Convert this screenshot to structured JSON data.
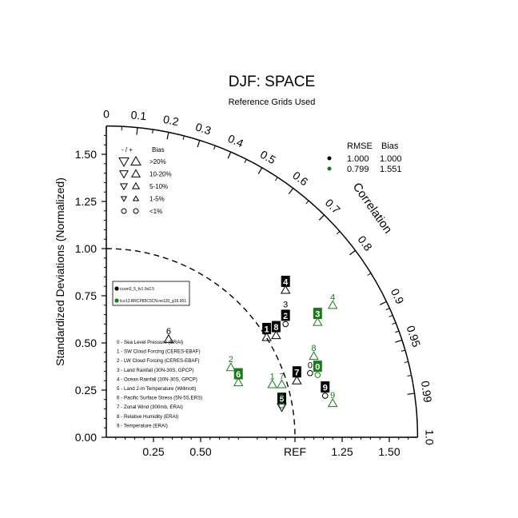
{
  "chart_data": {
    "type": "scatter",
    "subtype": "taylor-diagram",
    "title": "DJF: SPACE",
    "subtitle": "Reference Grids Used",
    "ylabel": "Standardized Deviations (Normalized)",
    "arc_label": "Correlation",
    "ylim": [
      0,
      1.65
    ],
    "xlim": [
      0,
      1.65
    ],
    "y_ticks": [
      "0.00",
      "0.25",
      "0.50",
      "0.75",
      "1.00",
      "1.25",
      "1.50"
    ],
    "x_ticks": [
      "0.25",
      "0.50",
      "REF",
      "1.25",
      "1.50"
    ],
    "corr_ticks": [
      "0",
      "0.1",
      "0.2",
      "0.3",
      "0.4",
      "0.5",
      "0.6",
      "0.7",
      "0.8",
      "0.9",
      "0.95",
      "0.99",
      "1.0"
    ],
    "reference_arc_radius": 1.0,
    "colors": {
      "case1": "#000000",
      "case2": "#1a7a1a"
    },
    "bias_legend": {
      "header_sign": "- / +",
      "header": "Bias",
      "rows": [
        ">20%",
        "10-20%",
        "5-10%",
        "1-5%",
        "<1%"
      ]
    },
    "summary_legend": {
      "headers": [
        "RMSE",
        "Bias"
      ],
      "rows": [
        {
          "rmse": "1.000",
          "bias": "1.000",
          "color": "#000000"
        },
        {
          "rmse": "0.799",
          "bias": "1.551",
          "color": "#1a7a1a"
        }
      ]
    },
    "series": [
      {
        "name": "ccsm3_5_fv1.9x2.5",
        "color": "#000000",
        "points": [
          {
            "id": "0",
            "x": 1.08,
            "y": 0.34,
            "marker": "circle"
          },
          {
            "id": "1",
            "x": 0.85,
            "y": 0.53,
            "marker": "triangle-up"
          },
          {
            "id": "2",
            "x": 0.95,
            "y": 0.6,
            "marker": "circle"
          },
          {
            "id": "3",
            "x": 0.95,
            "y": 0.66,
            "marker": "circle"
          },
          {
            "id": "4",
            "x": 0.95,
            "y": 0.78,
            "marker": "triangle-up"
          },
          {
            "id": "5",
            "x": 0.93,
            "y": 0.16,
            "marker": "triangle-down"
          },
          {
            "id": "6",
            "x": 0.33,
            "y": 0.52,
            "marker": "triangle-up"
          },
          {
            "id": "7",
            "x": 1.01,
            "y": 0.3,
            "marker": "triangle-up"
          },
          {
            "id": "8",
            "x": 0.9,
            "y": 0.54,
            "marker": "triangle-up"
          },
          {
            "id": "9",
            "x": 1.16,
            "y": 0.22,
            "marker": "circle"
          }
        ]
      },
      {
        "name": "b.e13.BRCP85C5CN.ne120_g16.001",
        "color": "#1a7a1a",
        "points": [
          {
            "id": "0",
            "x": 1.12,
            "y": 0.33,
            "marker": "circle"
          },
          {
            "id": "1",
            "x": 0.88,
            "y": 0.28,
            "marker": "triangle-up"
          },
          {
            "id": "2",
            "x": 0.66,
            "y": 0.37,
            "marker": "triangle-up"
          },
          {
            "id": "3",
            "x": 1.12,
            "y": 0.61,
            "marker": "triangle-up"
          },
          {
            "id": "4",
            "x": 1.2,
            "y": 0.7,
            "marker": "triangle-up"
          },
          {
            "id": "5",
            "x": 0.93,
            "y": 0.17,
            "marker": "circle"
          },
          {
            "id": "6",
            "x": 0.7,
            "y": 0.29,
            "marker": "triangle-up"
          },
          {
            "id": "7",
            "x": 0.93,
            "y": 0.28,
            "marker": "triangle-up"
          },
          {
            "id": "8",
            "x": 1.1,
            "y": 0.43,
            "marker": "triangle-up"
          },
          {
            "id": "9",
            "x": 1.2,
            "y": 0.18,
            "marker": "triangle-up"
          }
        ]
      }
    ],
    "variables": [
      "0 - Sea Level Pressure (ERAI)",
      "1 - SW Cloud Forcing (CERES-EBAF)",
      "2 - LW Cloud Forcing (CERES-EBAF)",
      "3 - Land Rainfall (30N-30S, GPCP)",
      "4 - Ocean Rainfall (30N-30S, GPCP)",
      "5 - Land 2-m Temperature (Willmott)",
      "6 - Pacific Surface Stress (5N-5S,ERS)",
      "7 - Zonal Wind (300mb, ERAI)",
      "8 - Relative Humidity (ERAI)",
      "9 - Temperature (ERAI)"
    ],
    "marker_styles": {
      "filled_label_box": [
        {
          "series": 0,
          "id": "1"
        },
        {
          "series": 0,
          "id": "2"
        },
        {
          "series": 0,
          "id": "4"
        },
        {
          "series": 0,
          "id": "5"
        },
        {
          "series": 0,
          "id": "7"
        },
        {
          "series": 0,
          "id": "8"
        },
        {
          "series": 0,
          "id": "9"
        },
        {
          "series": 1,
          "id": "0"
        },
        {
          "series": 1,
          "id": "3"
        },
        {
          "series": 1,
          "id": "6"
        }
      ]
    }
  }
}
